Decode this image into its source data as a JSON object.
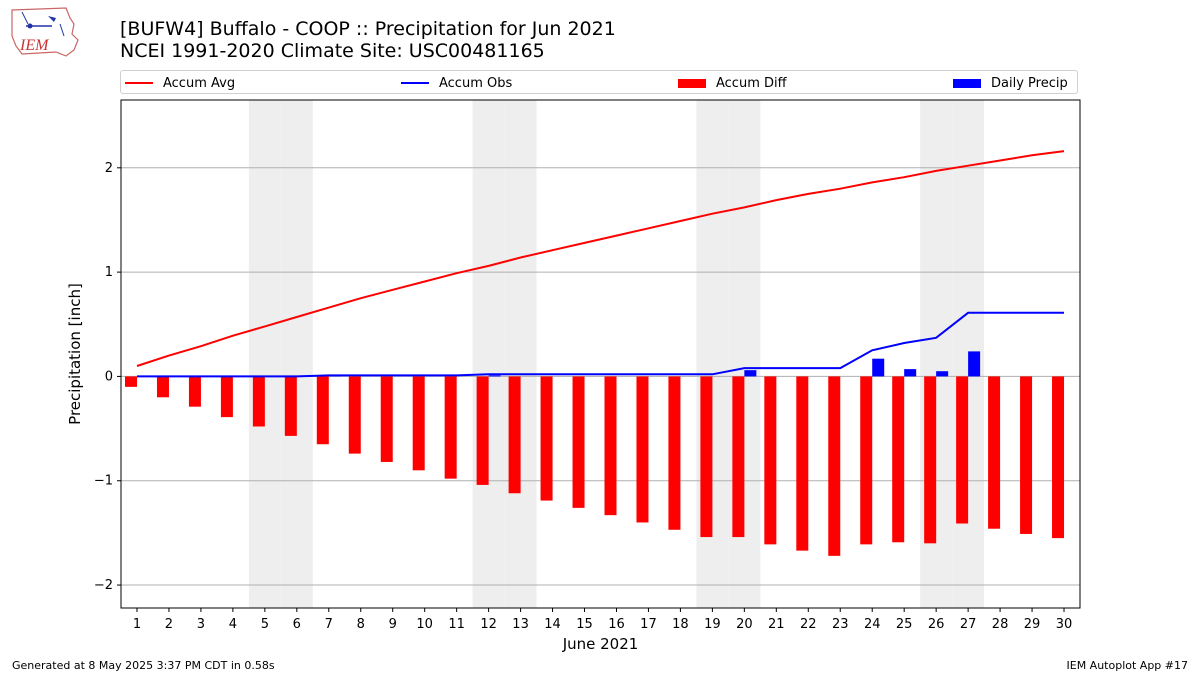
{
  "header": {
    "logo_text": "IEM",
    "title_line1": "[BUFW4] Buffalo - COOP :: Precipitation for Jun 2021",
    "title_line2": "NCEI 1991-2020 Climate Site: USC00481165"
  },
  "footer": {
    "generated": "Generated at 8 May 2025 3:37 PM CDT in 0.58s",
    "app": "IEM Autoplot App #17"
  },
  "colors": {
    "accum_avg": "#ff0000",
    "accum_obs": "#0000ff",
    "accum_diff": "#ff0000",
    "daily_precip": "#0000ff",
    "weekend_shade": "#eeeeee",
    "grid": "#b0b0b0"
  },
  "chart_data": {
    "type": "bar",
    "xlabel": "June 2021",
    "ylabel": "Precipitation [inch]",
    "ylim": [
      -2.22,
      2.65
    ],
    "xlim": [
      0.5,
      30.5
    ],
    "yticks": [
      2,
      1,
      0,
      -1,
      -2
    ],
    "ytick_labels": [
      "2",
      "1",
      "0",
      "−1",
      "−2"
    ],
    "grid": "horizontal",
    "legend_position": "top",
    "legend": [
      "Accum Avg",
      "Accum Obs",
      "Accum Diff",
      "Daily Precip"
    ],
    "weekend_days": [
      5,
      6,
      12,
      13,
      19,
      20,
      26,
      27
    ],
    "days": [
      1,
      2,
      3,
      4,
      5,
      6,
      7,
      8,
      9,
      10,
      11,
      12,
      13,
      14,
      15,
      16,
      17,
      18,
      19,
      20,
      21,
      22,
      23,
      24,
      25,
      26,
      27,
      28,
      29,
      30
    ],
    "day_labels": [
      "1",
      "2",
      "3",
      "4",
      "5",
      "6",
      "7",
      "8",
      "9",
      "10",
      "11",
      "12",
      "13",
      "14",
      "15",
      "16",
      "17",
      "18",
      "19",
      "20",
      "21",
      "22",
      "23",
      "24",
      "25",
      "26",
      "27",
      "28",
      "29",
      "30"
    ],
    "series": [
      {
        "name": "Accum Avg",
        "kind": "line",
        "values": [
          0.1,
          0.2,
          0.29,
          0.39,
          0.48,
          0.57,
          0.66,
          0.75,
          0.83,
          0.91,
          0.99,
          1.06,
          1.14,
          1.21,
          1.28,
          1.35,
          1.42,
          1.49,
          1.56,
          1.62,
          1.69,
          1.75,
          1.8,
          1.86,
          1.91,
          1.97,
          2.02,
          2.07,
          2.12,
          2.16
        ]
      },
      {
        "name": "Accum Obs",
        "kind": "line",
        "values": [
          0.0,
          0.0,
          0.0,
          0.0,
          0.0,
          0.0,
          0.01,
          0.01,
          0.01,
          0.01,
          0.01,
          0.02,
          0.02,
          0.02,
          0.02,
          0.02,
          0.02,
          0.02,
          0.02,
          0.08,
          0.08,
          0.08,
          0.08,
          0.25,
          0.32,
          0.37,
          0.61,
          0.61,
          0.61,
          0.61
        ]
      },
      {
        "name": "Accum Diff",
        "kind": "bar",
        "values": [
          -0.1,
          -0.2,
          -0.29,
          -0.39,
          -0.48,
          -0.57,
          -0.65,
          -0.74,
          -0.82,
          -0.9,
          -0.98,
          -1.04,
          -1.12,
          -1.19,
          -1.26,
          -1.33,
          -1.4,
          -1.47,
          -1.54,
          -1.54,
          -1.61,
          -1.67,
          -1.72,
          -1.61,
          -1.59,
          -1.6,
          -1.41,
          -1.46,
          -1.51,
          -1.55
        ]
      },
      {
        "name": "Daily Precip",
        "kind": "bar",
        "values": [
          0,
          0,
          0,
          0,
          0,
          0,
          0.01,
          0,
          0,
          0,
          0,
          0.01,
          0,
          0,
          0,
          0,
          0,
          0,
          0,
          0.06,
          0,
          0,
          0,
          0.17,
          0.07,
          0.05,
          0.24,
          0,
          0,
          0
        ]
      }
    ]
  }
}
